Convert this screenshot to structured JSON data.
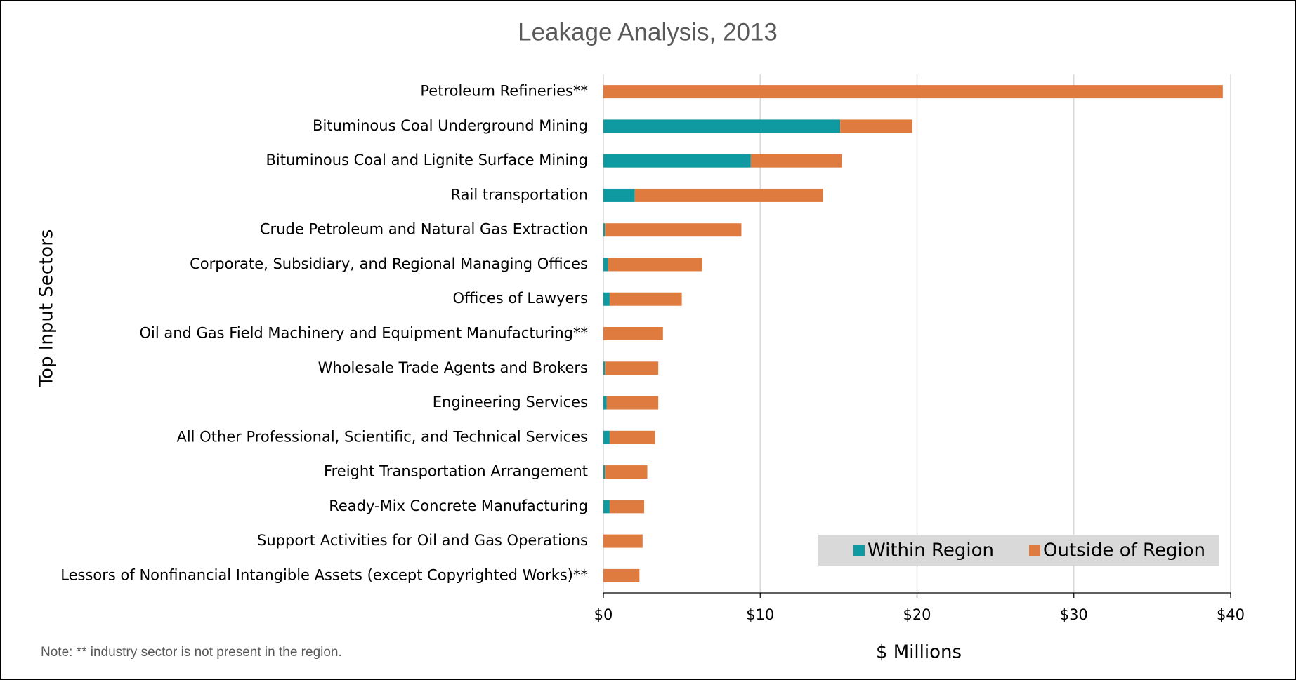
{
  "chart_data": {
    "type": "stacked-bar-horizontal",
    "title": "Leakage Analysis, 2013",
    "x_label": "$ Millions",
    "y_label": "Top Input Sectors",
    "note": "Note: ** industry sector is not present in the region.",
    "categories": [
      "Petroleum Refineries**",
      "Bituminous Coal Underground Mining",
      "Bituminous Coal and Lignite Surface Mining",
      "Rail transportation",
      "Crude Petroleum and Natural Gas Extraction",
      "Corporate, Subsidiary, and Regional Managing Offices",
      "Offices of Lawyers",
      "Oil and Gas Field Machinery and Equipment Manufacturing**",
      "Wholesale Trade Agents and Brokers",
      "Engineering Services",
      "All Other Professional, Scientific, and Technical Services",
      "Freight Transportation Arrangement",
      "Ready-Mix Concrete Manufacturing",
      "Support Activities for Oil and Gas Operations",
      "Lessors of Nonfinancial Intangible Assets (except Copyrighted Works)**"
    ],
    "series": [
      {
        "name": "Within Region",
        "color": "#0e9aa0",
        "values": [
          0,
          15.1,
          9.4,
          2.0,
          0.1,
          0.3,
          0.4,
          0,
          0.1,
          0.2,
          0.4,
          0.1,
          0.4,
          0,
          0
        ]
      },
      {
        "name": "Outside of Region",
        "color": "#e07b40",
        "values": [
          39.5,
          4.6,
          5.8,
          12.0,
          8.7,
          6.0,
          4.6,
          3.8,
          3.4,
          3.3,
          2.9,
          2.7,
          2.2,
          2.5,
          2.3
        ]
      }
    ],
    "xlim": [
      0,
      40
    ],
    "xticks": [
      {
        "value": 0,
        "label": "$0"
      },
      {
        "value": 10,
        "label": "$10"
      },
      {
        "value": 20,
        "label": "$20"
      },
      {
        "value": 30,
        "label": "$30"
      },
      {
        "value": 40,
        "label": "$40"
      }
    ],
    "grid": true,
    "legend": "lower right"
  }
}
